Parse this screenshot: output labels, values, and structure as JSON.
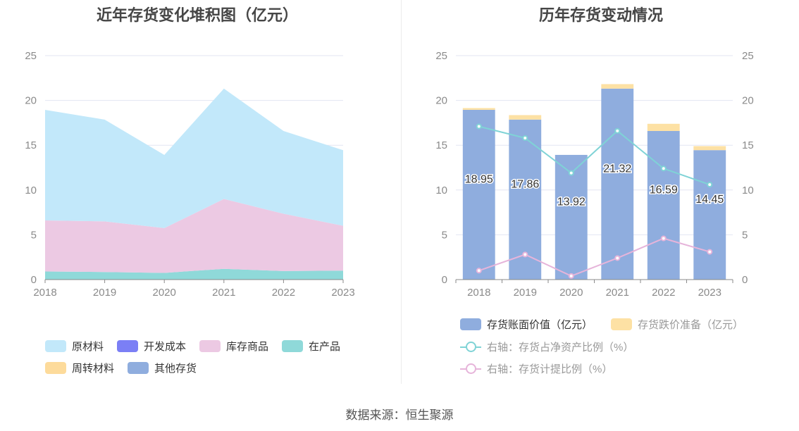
{
  "titles": {
    "left": "近年存货变化堆积图（亿元）",
    "right": "历年存货变动情况"
  },
  "source": "数据来源：恒生聚源",
  "colors": {
    "raw_materials": "#c2e8fa",
    "dev_cost": "#7b7ff5",
    "inventory_goods": "#ecc9e3",
    "wip": "#8fd9d9",
    "turnover": "#fddb9b",
    "other": "#8fadde",
    "book_value_bar": "#8fadde",
    "impairment_bar": "#fde1a4",
    "line_net_assets": "#7fd3d6",
    "line_provision": "#e6b4da",
    "grid": "#e3e6f2",
    "axis_text": "#8a8a8a"
  },
  "left_legend": [
    {
      "label": "原材料",
      "color": "#c2e8fa"
    },
    {
      "label": "开发成本",
      "color": "#7b7ff5"
    },
    {
      "label": "库存商品",
      "color": "#ecc9e3"
    },
    {
      "label": "在产品",
      "color": "#8fd9d9"
    },
    {
      "label": "周转材料",
      "color": "#fddb9b"
    },
    {
      "label": "其他存货",
      "color": "#8fadde"
    }
  ],
  "right_legend": [
    {
      "label": "存货账面价值（亿元）",
      "color": "#8fadde",
      "kind": "bar",
      "muted": false
    },
    {
      "label": "存货跌价准备（亿元）",
      "color": "#fde1a4",
      "kind": "bar",
      "muted": true
    },
    {
      "label": "右轴：存货占净资产比例（%）",
      "color": "#7fd3d6",
      "kind": "line",
      "muted": true
    },
    {
      "label": "右轴：存货计提比例（%）",
      "color": "#e6b4da",
      "kind": "line",
      "muted": true
    }
  ],
  "chart_data": [
    {
      "type": "area",
      "stacked": true,
      "x": [
        "2018",
        "2019",
        "2020",
        "2021",
        "2022",
        "2023"
      ],
      "ylim": [
        0,
        25
      ],
      "yticks": [
        0,
        5,
        10,
        15,
        20,
        25
      ],
      "grid": true,
      "legend_position": "bottom",
      "series": [
        {
          "name": "在产品",
          "values": [
            0.9,
            0.85,
            0.75,
            1.2,
            0.95,
            1.0
          ]
        },
        {
          "name": "库存商品",
          "values": [
            5.7,
            5.65,
            5.0,
            7.8,
            6.4,
            5.0
          ]
        },
        {
          "name": "原材料",
          "values": [
            12.35,
            11.36,
            8.17,
            12.32,
            9.24,
            8.45
          ]
        },
        {
          "name": "开发成本",
          "values": [
            0,
            0,
            0,
            0,
            0,
            0
          ]
        },
        {
          "name": "周转材料",
          "values": [
            0,
            0,
            0,
            0,
            0,
            0
          ]
        },
        {
          "name": "其他存货",
          "values": [
            0,
            0,
            0,
            0,
            0,
            0
          ]
        }
      ]
    },
    {
      "type": "bar",
      "stacked": true,
      "categories": [
        "2018",
        "2019",
        "2020",
        "2021",
        "2022",
        "2023"
      ],
      "ylim": [
        0,
        25
      ],
      "yticks": [
        0,
        5,
        10,
        15,
        20,
        25
      ],
      "y2lim": [
        0,
        25
      ],
      "y2ticks": [
        0,
        5,
        10,
        15,
        20,
        25
      ],
      "grid": true,
      "legend_position": "bottom",
      "series": [
        {
          "name": "存货账面价值（亿元）",
          "values": [
            18.95,
            17.86,
            13.92,
            21.32,
            16.59,
            14.45
          ],
          "labels": [
            "18.95",
            "17.86",
            "13.92",
            "21.32",
            "16.59",
            "14.45"
          ]
        },
        {
          "name": "存货跌价准备（亿元）",
          "values": [
            0.2,
            0.5,
            0.0,
            0.5,
            0.8,
            0.45
          ]
        }
      ],
      "lines": [
        {
          "name": "右轴：存货占净资产比例（%）",
          "axis": "right",
          "values": [
            17.1,
            15.8,
            11.9,
            16.6,
            12.4,
            10.6
          ]
        },
        {
          "name": "右轴：存货计提比例（%）",
          "axis": "right",
          "values": [
            1.0,
            2.8,
            0.4,
            2.4,
            4.6,
            3.1
          ]
        }
      ]
    }
  ]
}
